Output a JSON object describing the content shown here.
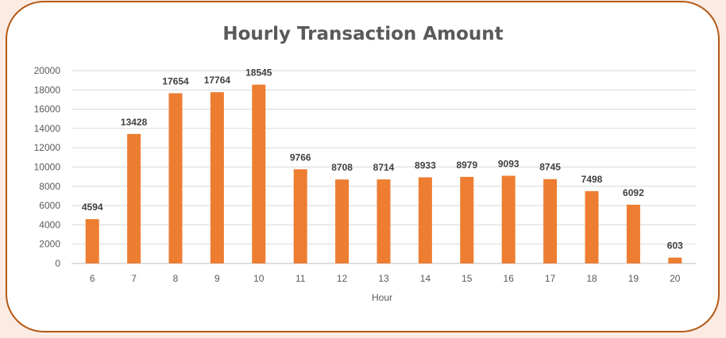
{
  "chart_data": {
    "type": "bar",
    "title": "Hourly Transaction Amount",
    "xlabel": "Hour",
    "ylabel": "",
    "categories": [
      "6",
      "7",
      "8",
      "9",
      "10",
      "11",
      "12",
      "13",
      "14",
      "15",
      "16",
      "17",
      "18",
      "19",
      "20"
    ],
    "values": [
      4594,
      13428,
      17654,
      17764,
      18545,
      9766,
      8708,
      8714,
      8933,
      8979,
      9093,
      8745,
      7498,
      6092,
      603
    ],
    "yticks": [
      "0",
      "2000",
      "4000",
      "6000",
      "8000",
      "10000",
      "12000",
      "14000",
      "16000",
      "18000",
      "20000"
    ],
    "ylim": [
      0,
      20000
    ],
    "grid": true,
    "bar_color": "#ed7d31",
    "gridline_color": "#d9d9d9"
  }
}
